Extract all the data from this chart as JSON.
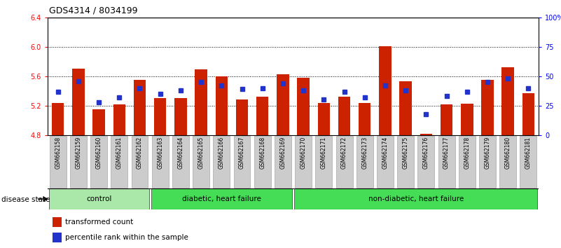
{
  "title": "GDS4314 / 8034199",
  "samples": [
    "GSM662158",
    "GSM662159",
    "GSM662160",
    "GSM662161",
    "GSM662162",
    "GSM662163",
    "GSM662164",
    "GSM662165",
    "GSM662166",
    "GSM662167",
    "GSM662168",
    "GSM662169",
    "GSM662170",
    "GSM662171",
    "GSM662172",
    "GSM662173",
    "GSM662174",
    "GSM662175",
    "GSM662176",
    "GSM662177",
    "GSM662178",
    "GSM662179",
    "GSM662180",
    "GSM662181"
  ],
  "red_values": [
    5.24,
    5.7,
    5.15,
    5.22,
    5.55,
    5.3,
    5.3,
    5.69,
    5.6,
    5.28,
    5.32,
    5.63,
    5.58,
    5.24,
    5.32,
    5.24,
    6.01,
    5.53,
    4.82,
    5.22,
    5.23,
    5.55,
    5.72,
    5.37
  ],
  "blue_values": [
    37,
    46,
    28,
    32,
    40,
    35,
    38,
    45,
    42,
    39,
    40,
    44,
    38,
    30,
    37,
    32,
    42,
    38,
    18,
    33,
    37,
    45,
    48,
    40
  ],
  "group_defs": [
    {
      "label": "control",
      "start": 0,
      "end": 4,
      "color": "#aae8aa"
    },
    {
      "label": "diabetic, heart failure",
      "start": 5,
      "end": 11,
      "color": "#44dd55"
    },
    {
      "label": "non-diabetic, heart failure",
      "start": 12,
      "end": 23,
      "color": "#44dd55"
    }
  ],
  "ylim_left": [
    4.8,
    6.4
  ],
  "ylim_right": [
    0,
    100
  ],
  "yticks_left": [
    4.8,
    5.2,
    5.6,
    6.0,
    6.4
  ],
  "yticks_right": [
    0,
    25,
    50,
    75,
    100
  ],
  "ytick_labels_right": [
    "0",
    "25",
    "50",
    "75",
    "100%"
  ],
  "bar_color": "#cc2200",
  "marker_color": "#2233cc",
  "bar_bottom": 4.8,
  "legend_items": [
    {
      "label": "transformed count",
      "color": "#cc2200"
    },
    {
      "label": "percentile rank within the sample",
      "color": "#2233cc"
    }
  ],
  "disease_state_label": "disease state"
}
